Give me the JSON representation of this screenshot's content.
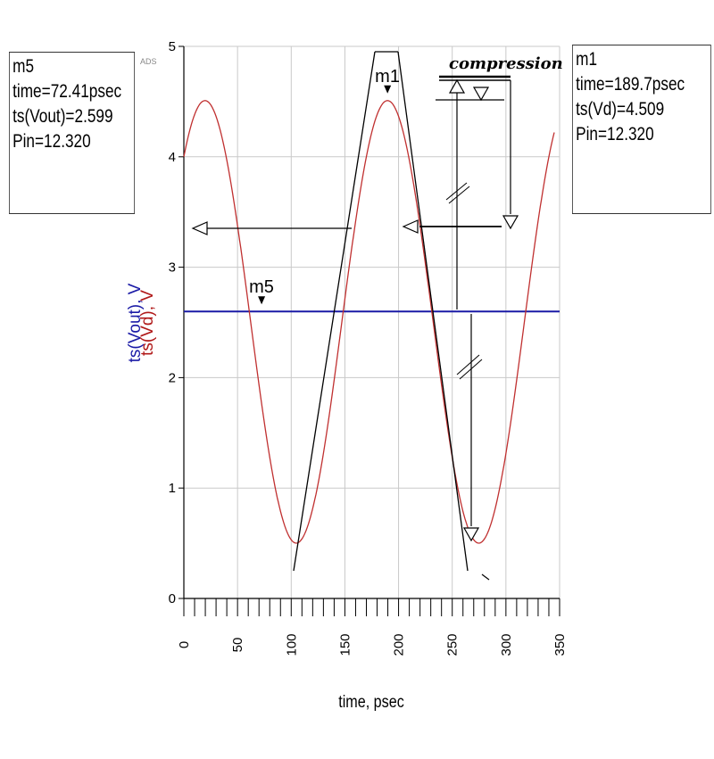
{
  "watermark": "ADS",
  "markers": {
    "m5": {
      "name": "m5",
      "line1": "time=72.41psec",
      "line2": "ts(Vout)=2.599",
      "line3": "Pin=12.320",
      "x": 72.41,
      "y": 2.599
    },
    "m1": {
      "name": "m1",
      "line1": "time=189.7psec",
      "line2": "ts(Vd)=4.509",
      "line3": "Pin=12.320",
      "x": 189.7,
      "y": 4.509
    }
  },
  "annotation": {
    "compression": "compression"
  },
  "chart_data": {
    "type": "line",
    "xlabel": "time, psec",
    "ylabel_parts": [
      {
        "text": "ts(Vout), V",
        "color": "#1a1aa6"
      },
      {
        "text": "ts(Vd), V",
        "color": "#b01818"
      }
    ],
    "xlim": [
      0,
      350
    ],
    "ylim": [
      0,
      5
    ],
    "x_ticks": [
      0,
      50,
      100,
      150,
      200,
      250,
      300,
      350
    ],
    "y_ticks": [
      0,
      1,
      2,
      3,
      4,
      5
    ],
    "grid": true,
    "series": [
      {
        "name": "ts(Vout)",
        "color": "#1a1aa6",
        "type": "constant",
        "value": 2.599
      },
      {
        "name": "ts(Vd)",
        "color": "#c03030",
        "type": "sine",
        "offset": 2.505,
        "amplitude": 2.004,
        "period": 170,
        "peak_time": 19.7
      }
    ]
  }
}
